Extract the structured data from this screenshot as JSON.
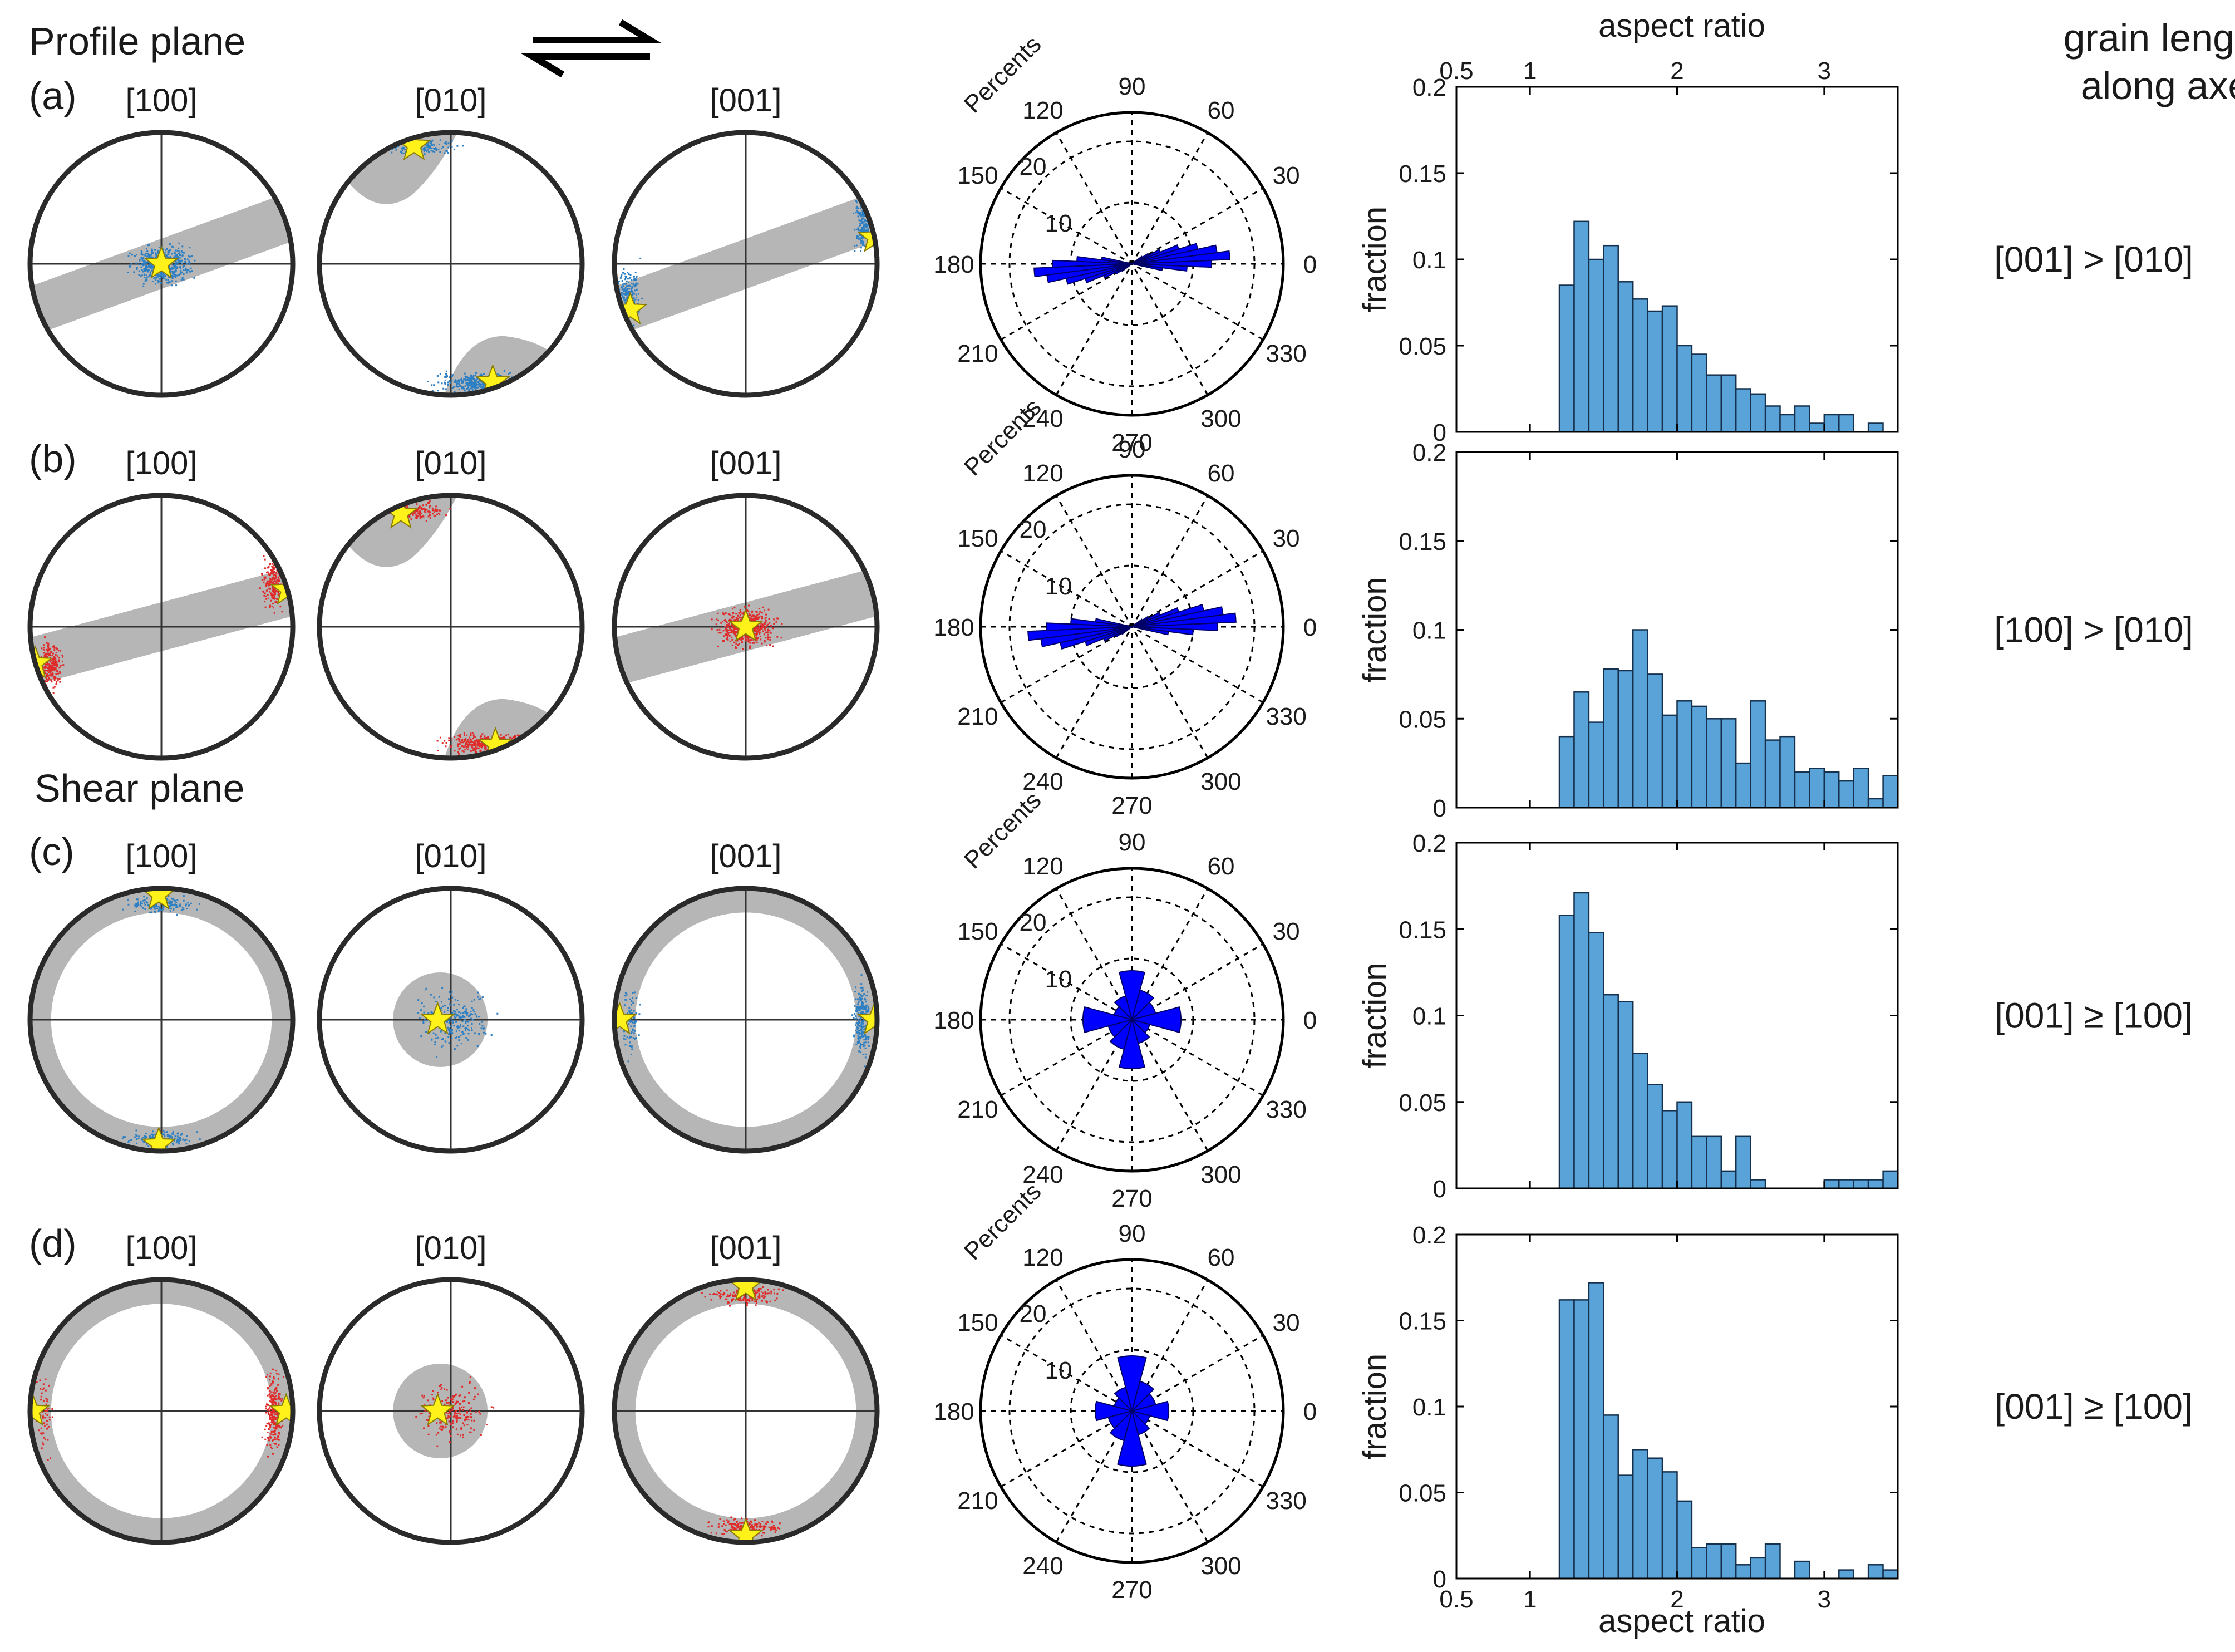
{
  "colors": {
    "profile_points": "#2d7fc4",
    "shear_points": "#e02b2b",
    "star": "#fff21a",
    "band": "#b6b6b6",
    "rose": "#0000ff",
    "hist_bar": "#59a3d9",
    "hist_edge": "#16314d"
  },
  "labels": {
    "profile_plane": "Profile plane",
    "shear_plane": "Shear plane",
    "grain_lengths_line1": "grain lengths",
    "grain_lengths_line2": "along axes",
    "shear_sense_icon": "half-arrows-icon"
  },
  "rows": [
    {
      "label": "(a)",
      "poles": [
        "[100]",
        "[010]",
        "[001]"
      ],
      "grain_lengths": "[001]  > [010]",
      "rose": {
        "title": "Percents",
        "rlabels": [
          "10",
          "20"
        ],
        "angle_labels": [
          "0",
          "30",
          "60",
          "90",
          "120",
          "150",
          "180",
          "210",
          "240",
          "270",
          "300",
          "330"
        ]
      },
      "hist_ylabel": "fraction",
      "hist_yticks": [
        "0",
        "0.05",
        "0.1",
        "0.15",
        "0.2"
      ]
    },
    {
      "label": "(b)",
      "poles": [
        "[100]",
        "[010]",
        "[001]"
      ],
      "grain_lengths": "[100]  > [010]",
      "rose": {
        "title": "Percents",
        "rlabels": [
          "10",
          "20"
        ],
        "angle_labels": [
          "0",
          "30",
          "60",
          "90",
          "120",
          "150",
          "180",
          "210",
          "240",
          "270",
          "300",
          "330"
        ]
      },
      "hist_ylabel": "fraction",
      "hist_yticks": [
        "0",
        "0.05",
        "0.1",
        "0.15",
        "0.2"
      ]
    },
    {
      "label": "(c)",
      "poles": [
        "[100]",
        "[010]",
        "[001]"
      ],
      "grain_lengths": "[001]  ≥ [100]",
      "rose": {
        "title": "Percents",
        "rlabels": [
          "10",
          "20"
        ],
        "angle_labels": [
          "0",
          "30",
          "60",
          "90",
          "120",
          "150",
          "180",
          "210",
          "240",
          "270",
          "300",
          "330"
        ]
      },
      "hist_ylabel": "fraction",
      "hist_yticks": [
        "0",
        "0.05",
        "0.1",
        "0.15",
        "0.2"
      ]
    },
    {
      "label": "(d)",
      "poles": [
        "[100]",
        "[010]",
        "[001]"
      ],
      "grain_lengths": "[001]  ≥ [100]",
      "rose": {
        "title": "Percents",
        "rlabels": [
          "10",
          "20"
        ],
        "angle_labels": [
          "0",
          "30",
          "60",
          "90",
          "120",
          "150",
          "180",
          "210",
          "240",
          "270",
          "300",
          "330"
        ]
      },
      "hist_ylabel": "fraction",
      "hist_yticks": [
        "0",
        "0.05",
        "0.1",
        "0.15",
        "0.2"
      ]
    }
  ],
  "hist_axis": {
    "xlabel": "aspect ratio",
    "xticks": [
      "0.5",
      "1",
      "2",
      "3"
    ]
  },
  "chart_data": [
    {
      "type": "scatter",
      "kind": "pole_figures",
      "rows": [
        "(a)",
        "(b)",
        "(c)",
        "(d)"
      ],
      "columns": [
        "[100]",
        "[010]",
        "[001]"
      ],
      "note": "Lower-hemisphere pole figures with point clouds, yellow star (mean axis) and grey band/disk"
    },
    {
      "type": "bar",
      "kind": "rose_diagram",
      "title": "Percents",
      "angle_unit": "degrees",
      "r_ticks": [
        10,
        20
      ],
      "series": [
        {
          "name": "(a)",
          "bins_deg": [
            -10,
            -5,
            0,
            5,
            10,
            15,
            20,
            25,
            30,
            35
          ],
          "percent": [
            5,
            9,
            13,
            16,
            14,
            11,
            8,
            5,
            3,
            2
          ]
        },
        {
          "name": "(b)",
          "bins_deg": [
            -10,
            -5,
            0,
            5,
            10,
            15,
            20,
            25,
            30,
            35
          ],
          "percent": [
            6,
            10,
            14,
            17,
            15,
            12,
            8,
            5,
            3,
            2
          ]
        },
        {
          "name": "(c)",
          "bins_deg": [
            0,
            30,
            60,
            90,
            120,
            150
          ],
          "percent": [
            8,
            4,
            5,
            8,
            4,
            3
          ]
        },
        {
          "name": "(d)",
          "bins_deg": [
            0,
            30,
            60,
            90,
            120,
            150
          ],
          "percent": [
            6,
            4,
            5,
            9,
            4,
            3
          ]
        }
      ]
    },
    {
      "type": "bar",
      "kind": "histogram",
      "xlabel": "aspect ratio",
      "ylabel": "fraction",
      "xlim": [
        0.5,
        3.5
      ],
      "ylim": [
        0,
        0.2
      ],
      "bin_width": 0.1,
      "bin_start": 1.2,
      "series": [
        {
          "name": "(a)",
          "values": [
            0.085,
            0.122,
            0.1,
            0.108,
            0.087,
            0.077,
            0.07,
            0.073,
            0.05,
            0.045,
            0.033,
            0.033,
            0.025,
            0.022,
            0.015,
            0.01,
            0.015,
            0.005,
            0.01,
            0.01,
            0.0,
            0.005,
            0.0,
            0.0
          ]
        },
        {
          "name": "(b)",
          "values": [
            0.04,
            0.065,
            0.048,
            0.078,
            0.077,
            0.1,
            0.075,
            0.052,
            0.06,
            0.057,
            0.05,
            0.05,
            0.025,
            0.06,
            0.038,
            0.04,
            0.02,
            0.022,
            0.02,
            0.015,
            0.022,
            0.005,
            0.018,
            0.008
          ]
        },
        {
          "name": "(c)",
          "values": [
            0.158,
            0.171,
            0.148,
            0.112,
            0.108,
            0.078,
            0.06,
            0.045,
            0.05,
            0.03,
            0.03,
            0.01,
            0.03,
            0.005,
            0.0,
            0.0,
            0.0,
            0.0,
            0.005,
            0.005,
            0.005,
            0.005,
            0.01
          ]
        },
        {
          "name": "(d)",
          "values": [
            0.162,
            0.162,
            0.172,
            0.095,
            0.06,
            0.075,
            0.07,
            0.062,
            0.045,
            0.018,
            0.02,
            0.02,
            0.008,
            0.012,
            0.02,
            0.0,
            0.01,
            0.0,
            0.0,
            0.005,
            0.0,
            0.008,
            0.005
          ]
        }
      ]
    }
  ]
}
